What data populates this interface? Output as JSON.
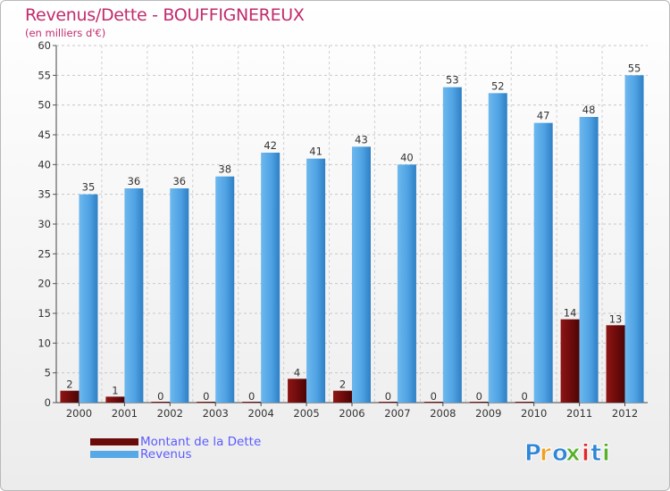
{
  "header": {
    "title": "Revenus/Dette - BOUFFIGNEREUX",
    "subtitle": "(en milliers d'€)"
  },
  "chart_data": {
    "type": "bar",
    "title": "Revenus/Dette - BOUFFIGNEREUX",
    "subtitle": "(en milliers d'€)",
    "xlabel": "",
    "ylabel": "",
    "categories": [
      "2000",
      "2001",
      "2002",
      "2003",
      "2004",
      "2005",
      "2006",
      "2007",
      "2008",
      "2009",
      "2010",
      "2011",
      "2012"
    ],
    "series": [
      {
        "name": "Montant de la Dette",
        "values": [
          2,
          1,
          0,
          0,
          0,
          4,
          2,
          0,
          0,
          0,
          0,
          14,
          13
        ],
        "color": "#7a0d0d"
      },
      {
        "name": "Revenus",
        "values": [
          35,
          36,
          36,
          38,
          42,
          41,
          43,
          40,
          53,
          52,
          47,
          48,
          55
        ],
        "color": "#56a8e6"
      }
    ],
    "ylim": [
      0,
      60
    ],
    "yticks": [
      0,
      5,
      10,
      15,
      20,
      25,
      30,
      35,
      40,
      45,
      50,
      55,
      60
    ],
    "grid": true,
    "legend_position": "bottom-left",
    "data_labels": true
  },
  "legend": {
    "items": [
      {
        "label": "Montant de la Dette",
        "color": "#6b0a0a"
      },
      {
        "label": "Revenus",
        "color": "#56a8e6"
      }
    ]
  },
  "logo": {
    "text": "Proxiti",
    "letters": [
      "P",
      "r",
      "o",
      "x",
      "i",
      "t",
      "i"
    ],
    "colors": [
      "#2f86d6",
      "#f0a020",
      "#2f86d6",
      "#58b02a",
      "#e0282a",
      "#2f86d6",
      "#58b02a"
    ]
  }
}
